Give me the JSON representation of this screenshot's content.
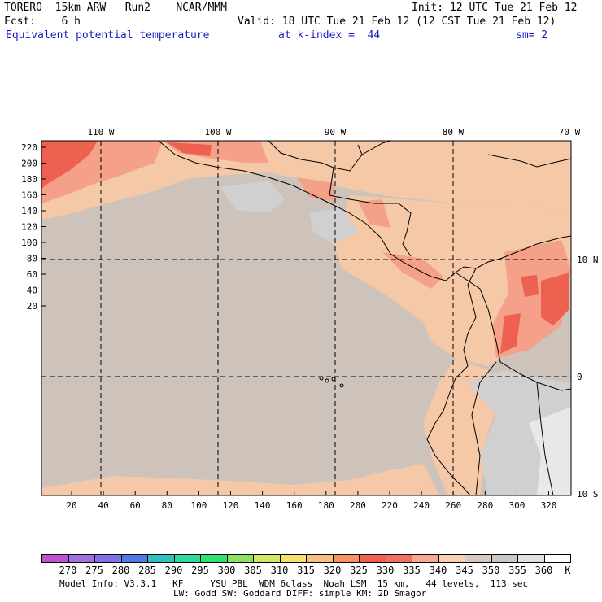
{
  "header": {
    "model": "TORERO  15km ARW   Run2    NCAR/MMM",
    "init": "Init: 12 UTC Tue 21 Feb 12",
    "fcst": "Fcst:    6 h",
    "valid": "Valid: 18 UTC Tue 21 Feb 12 (12 CST Tue 21 Feb 12)",
    "field": "Equivalent potential temperature",
    "kindex": "at k-index =  44",
    "sm": "sm= 2"
  },
  "map": {
    "lon_labels": [
      "110 W",
      "100 W",
      "90 W",
      "80 W",
      "70 W"
    ],
    "lat_labels": [
      "10 N",
      "0",
      "10 S"
    ],
    "y_ticks": [
      "220",
      "200",
      "180",
      "160",
      "140",
      "120",
      "100",
      "80",
      "60",
      "40",
      "20"
    ],
    "x_ticks": [
      "20",
      "40",
      "60",
      "80",
      "100",
      "120",
      "140",
      "160",
      "180",
      "200",
      "220",
      "240",
      "260",
      "280",
      "300",
      "320"
    ],
    "colors": {
      "background_field": "#cdc3bb",
      "warm_field": "#f5c8a8",
      "hot_field": "#f5a088",
      "hottest_field": "#ee6050",
      "gray_field": "#d0d0d0",
      "light_field": "#e8e8e8"
    }
  },
  "colorbar": {
    "labels": [
      "270",
      "275",
      "280",
      "285",
      "290",
      "295",
      "300",
      "305",
      "310",
      "315",
      "320",
      "325",
      "330",
      "335",
      "340",
      "345",
      "350",
      "355",
      "360"
    ],
    "units": "K",
    "colors": [
      "#c050d0",
      "#a070e0",
      "#8070e8",
      "#5078e8",
      "#30c0c0",
      "#30d8a0",
      "#30e070",
      "#90e060",
      "#d0e860",
      "#f8e070",
      "#f8c080",
      "#f89060",
      "#f06050",
      "#f07060",
      "#f8a890",
      "#f8d0b0",
      "#d8c8c0",
      "#c8c8c8",
      "#e0e0e0",
      "#ffffff"
    ]
  },
  "footer": {
    "line1": "Model Info: V3.3.1   KF     YSU PBL  WDM 6class  Noah LSM  15 km,   44 levels,  113 sec",
    "line2": "LW: Godd SW: Goddard DIFF: simple KM: 2D Smagor"
  }
}
